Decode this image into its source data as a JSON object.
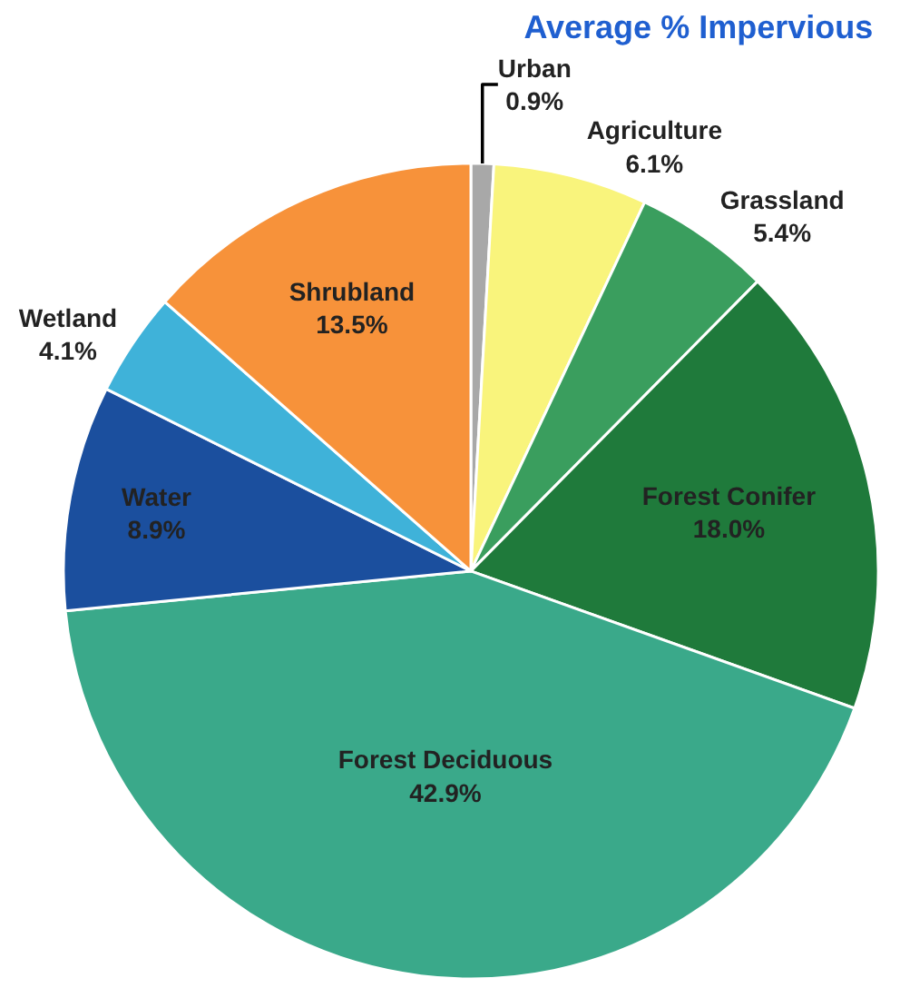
{
  "chart_data": {
    "type": "pie",
    "title": "Average % Impervious",
    "categories": [
      "Urban",
      "Agriculture",
      "Grassland",
      "Forest Conifer",
      "Forest Deciduous",
      "Water",
      "Wetland",
      "Shrubland"
    ],
    "values": [
      0.9,
      6.1,
      5.4,
      18.0,
      42.9,
      8.9,
      4.1,
      13.5
    ],
    "value_labels": [
      "0.9%",
      "6.1%",
      "5.4%",
      "18.0%",
      "42.9%",
      "8.9%",
      "4.1%",
      "13.5%"
    ],
    "colors": [
      "#a8a8a8",
      "#f9f47c",
      "#3a9e5e",
      "#1f7a3b",
      "#3aa98a",
      "#1b4f9e",
      "#3fb2d9",
      "#f7923a"
    ],
    "legend": false
  }
}
